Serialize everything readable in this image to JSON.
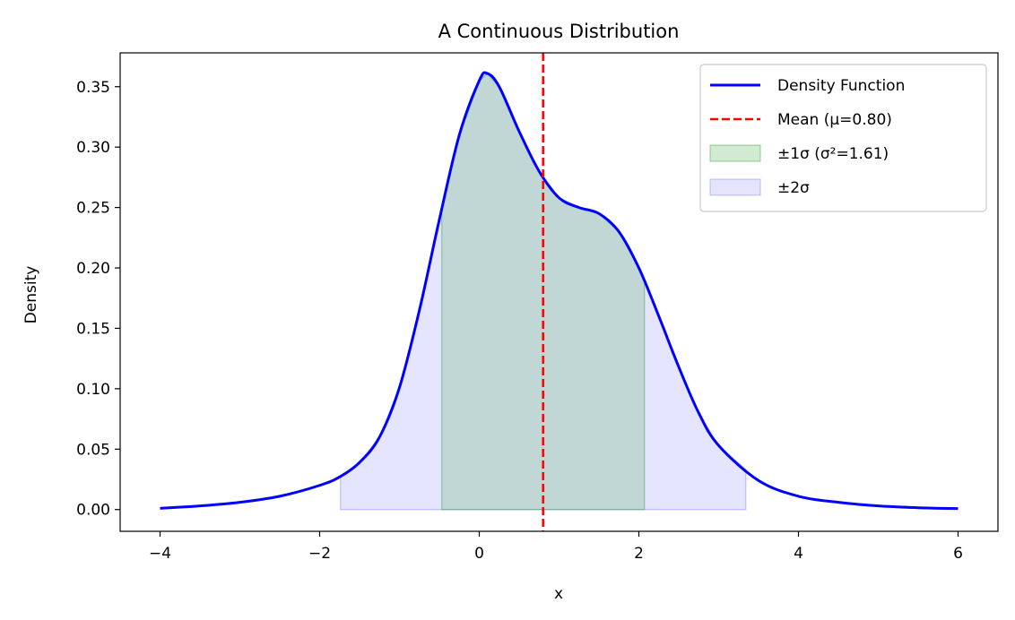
{
  "chart_data": {
    "type": "area",
    "title": "A Continuous Distribution",
    "xlabel": "x",
    "ylabel": "Density",
    "xlim": [
      -4.5,
      6.5
    ],
    "ylim": [
      -0.018,
      0.378
    ],
    "x_ticks": [
      -4,
      -2,
      0,
      2,
      4,
      6
    ],
    "x_tick_labels": [
      "−4",
      "−2",
      "0",
      "2",
      "4",
      "6"
    ],
    "y_ticks": [
      0.0,
      0.05,
      0.1,
      0.15,
      0.2,
      0.25,
      0.3,
      0.35
    ],
    "y_tick_labels": [
      "0.00",
      "0.05",
      "0.10",
      "0.15",
      "0.20",
      "0.25",
      "0.30",
      "0.35"
    ],
    "grid": false,
    "legend_position": "top-right",
    "mean": 0.8,
    "variance": 1.61,
    "sigma_band_1": [
      -0.47,
      2.07
    ],
    "sigma_band_2": [
      -1.74,
      3.34
    ],
    "series": [
      {
        "name": "Density Function",
        "color": "#0000ff",
        "x": [
          -4.0,
          -3.5,
          -3.0,
          -2.5,
          -2.0,
          -1.75,
          -1.5,
          -1.25,
          -1.0,
          -0.75,
          -0.5,
          -0.25,
          0.0,
          0.1,
          0.25,
          0.5,
          0.75,
          1.0,
          1.25,
          1.5,
          1.75,
          2.0,
          2.25,
          2.5,
          2.75,
          3.0,
          3.5,
          4.0,
          4.5,
          5.0,
          5.5,
          6.0
        ],
        "y": [
          0.001,
          0.003,
          0.006,
          0.011,
          0.02,
          0.027,
          0.039,
          0.06,
          0.101,
          0.165,
          0.24,
          0.31,
          0.355,
          0.361,
          0.35,
          0.313,
          0.28,
          0.258,
          0.25,
          0.245,
          0.23,
          0.2,
          0.16,
          0.118,
          0.08,
          0.053,
          0.024,
          0.011,
          0.006,
          0.003,
          0.0015,
          0.0008
        ]
      }
    ],
    "legend": [
      {
        "label": "Density Function",
        "kind": "line",
        "color": "#0000ff"
      },
      {
        "label": "Mean (μ=0.80)",
        "kind": "dashed",
        "color": "#ff0000"
      },
      {
        "label": "±1σ (σ²=1.61)",
        "kind": "patch",
        "color": "#2ca02c"
      },
      {
        "label": "±2σ",
        "kind": "patch",
        "color": "#0000ff"
      }
    ]
  }
}
